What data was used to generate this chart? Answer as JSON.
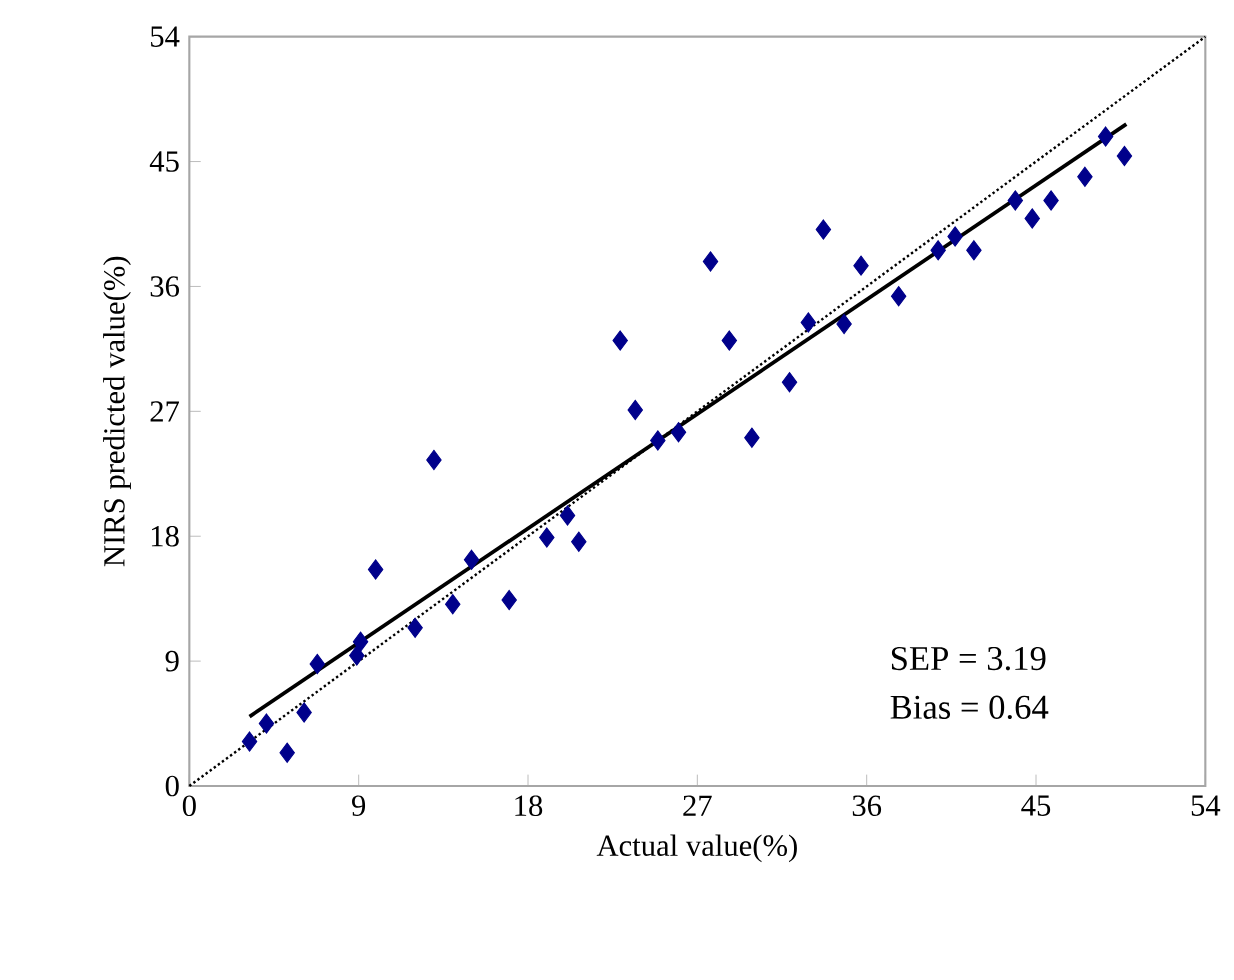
{
  "chart_data": {
    "type": "scatter",
    "xlabel": "Actual value(%)",
    "ylabel": "NIRS predicted value(%)",
    "xlim": [
      0,
      54
    ],
    "ylim": [
      0,
      54
    ],
    "xticks": [
      0,
      9,
      18,
      27,
      36,
      45,
      54
    ],
    "yticks": [
      0,
      9,
      18,
      27,
      36,
      45,
      54
    ],
    "grid": false,
    "marker": "diamond",
    "series": [
      {
        "color": "#00008b",
        "x": [
          3.2,
          4.1,
          5.2,
          6.1,
          6.8,
          8.9,
          9.1,
          9.9,
          12.0,
          13.0,
          14.0,
          15.0,
          17.0,
          19.0,
          20.1,
          20.7,
          22.9,
          23.7,
          24.9,
          26.0,
          27.7,
          28.7,
          29.9,
          31.9,
          32.9,
          33.7,
          34.8,
          35.7,
          37.7,
          39.8,
          40.7,
          41.7,
          43.9,
          44.8,
          45.8,
          47.6,
          48.7,
          49.7
        ],
        "values": [
          3.2,
          4.5,
          2.4,
          5.3,
          8.8,
          9.4,
          10.4,
          15.6,
          11.4,
          23.5,
          13.1,
          16.3,
          13.4,
          17.9,
          19.5,
          17.6,
          32.1,
          27.1,
          24.9,
          25.5,
          37.8,
          32.1,
          25.1,
          29.1,
          33.4,
          40.1,
          33.3,
          37.5,
          35.3,
          38.6,
          39.6,
          38.6,
          42.2,
          40.9,
          42.2,
          43.9,
          46.8,
          45.4
        ]
      },
      {
        "type": "line",
        "color": "#000000",
        "marker": "none",
        "line_style": "solid",
        "x": [
          3.2,
          49.8
        ],
        "values": [
          5.0,
          47.7
        ]
      },
      {
        "type": "line",
        "color": "#000000",
        "marker": "none",
        "line_style": "dotted",
        "x": [
          0,
          54
        ],
        "values": [
          0,
          54
        ]
      }
    ],
    "annotations": [
      "SEP = 3.19",
      "Bias = 0.64"
    ]
  }
}
